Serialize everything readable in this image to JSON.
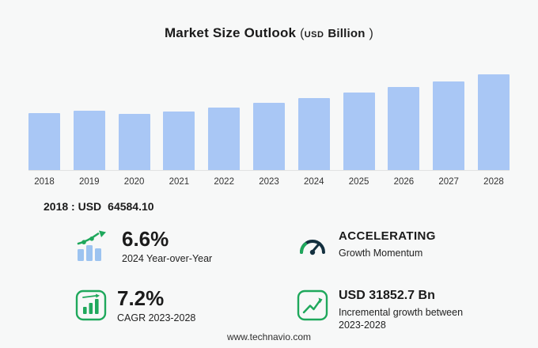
{
  "header": {
    "title": "Market Size Outlook",
    "open_paren": "(",
    "unit_currency": "USD",
    "unit_label": "Billion",
    "close_paren": ")"
  },
  "chart_data": {
    "type": "bar",
    "title": "Market Size Outlook (USD Billion)",
    "categories": [
      "2018",
      "2019",
      "2020",
      "2021",
      "2022",
      "2023",
      "2024",
      "2025",
      "2026",
      "2027",
      "2028"
    ],
    "values": [
      64584.1,
      67500,
      63800,
      66600,
      71200,
      76600,
      81700,
      87600,
      93900,
      100600,
      108500
    ],
    "ylim": [
      0,
      115000
    ],
    "grid": false,
    "bar_color": "#a9c7f5",
    "legend": "none"
  },
  "baseline": {
    "label": "2018 : USD",
    "value": "64584.10"
  },
  "stats": [
    {
      "icon": "growth-arrow-bars-icon",
      "value": "6.6%",
      "label": "2024 Year-over-Year"
    },
    {
      "icon": "gauge-icon",
      "value": "ACCELERATING",
      "label": "Growth Momentum"
    },
    {
      "icon": "bar-chart-icon",
      "value": "7.2%",
      "label": "CAGR 2023-2028"
    },
    {
      "icon": "line-chart-icon",
      "value": "USD 31852.7 Bn",
      "label": "Incremental growth between 2023-2028"
    }
  ],
  "footer": {
    "url": "www.technavio.com"
  },
  "colors": {
    "bar": "#a9c7f5",
    "accent_green": "#1fa85c",
    "gauge_dark": "#13303f",
    "text_dark": "#1b1b1b"
  }
}
